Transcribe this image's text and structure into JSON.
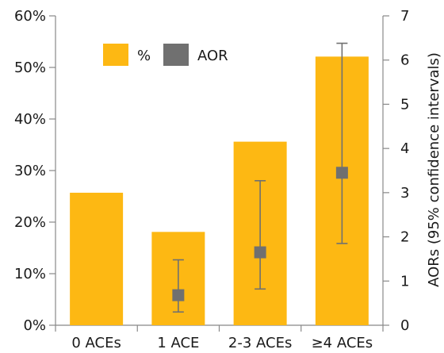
{
  "chart_data": {
    "type": "bar",
    "categories": [
      "0 ACEs",
      "1 ACE",
      "2-3 ACEs",
      "≥4 ACEs"
    ],
    "series": [
      {
        "name": "%",
        "axis": "left",
        "values": [
          25.7,
          18.1,
          35.6,
          52.1
        ],
        "color": "#FDB813"
      },
      {
        "name": "AOR",
        "axis": "right",
        "type": "scatter",
        "marker": "square",
        "color": "#707070",
        "values": [
          null,
          0.68,
          1.65,
          3.45
        ],
        "ci_low": [
          null,
          0.3,
          0.82,
          1.85
        ],
        "ci_high": [
          null,
          1.48,
          3.27,
          6.38
        ]
      }
    ],
    "y_left": {
      "label": "",
      "ylim": [
        0,
        60
      ],
      "ticks": [
        "0%",
        "10%",
        "20%",
        "30%",
        "40%",
        "50%",
        "60%"
      ]
    },
    "y_right": {
      "label": "AORs (95% confidence intervals)",
      "ylim": [
        0,
        7
      ],
      "ticks": [
        "0",
        "1",
        "2",
        "3",
        "4",
        "5",
        "6",
        "7"
      ]
    },
    "legend": {
      "placement": "top-left",
      "entries": [
        "%",
        "AOR"
      ]
    },
    "title": "",
    "grid": false
  }
}
